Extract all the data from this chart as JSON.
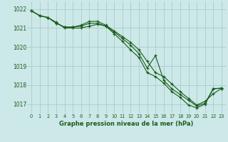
{
  "title": "Graphe pression niveau de la mer (hPa)",
  "bg_color": "#cce8e8",
  "grid_color": "#aacccc",
  "line_color": "#1a5c1a",
  "xlim": [
    -0.5,
    23.5
  ],
  "ylim": [
    1016.5,
    1022.4
  ],
  "yticks": [
    1017,
    1018,
    1019,
    1020,
    1021,
    1022
  ],
  "xtick_labels": [
    "0",
    "1",
    "2",
    "3",
    "4",
    "5",
    "6",
    "7",
    "8",
    "9",
    "10",
    "11",
    "12",
    "13",
    "14",
    "15",
    "16",
    "17",
    "18",
    "19",
    "20",
    "21",
    "22",
    "23"
  ],
  "series": [
    [
      1021.9,
      1021.65,
      1021.55,
      1021.3,
      1021.0,
      1021.0,
      1021.0,
      1021.1,
      1021.2,
      1021.1,
      1020.7,
      1020.3,
      1019.85,
      1019.45,
      1018.65,
      1018.45,
      1018.1,
      1017.65,
      1017.35,
      1016.95,
      1016.8,
      1017.0,
      1017.8,
      1017.85
    ],
    [
      1021.9,
      1021.65,
      1021.55,
      1021.25,
      1021.05,
      1021.05,
      1021.1,
      1021.25,
      1021.25,
      1021.1,
      1020.8,
      1020.45,
      1020.1,
      1019.65,
      1018.9,
      1019.55,
      1018.25,
      1017.8,
      1017.5,
      1017.2,
      1016.9,
      1017.05,
      1017.82,
      1017.82
    ],
    [
      1021.9,
      1021.65,
      1021.55,
      1021.25,
      1021.05,
      1021.05,
      1021.15,
      1021.35,
      1021.35,
      1021.15,
      1020.85,
      1020.55,
      1020.25,
      1019.85,
      1019.25,
      1018.65,
      1018.45,
      1018.05,
      1017.65,
      1017.3,
      1016.95,
      1017.15,
      1017.55,
      1017.82
    ]
  ]
}
